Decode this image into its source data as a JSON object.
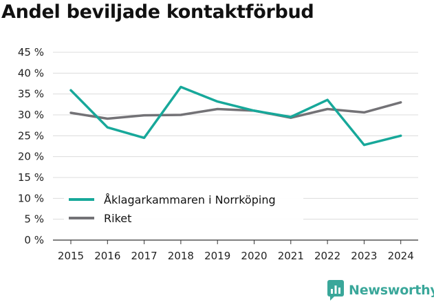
{
  "chart_data": {
    "type": "line",
    "title": "Andel beviljade kontaktförbud",
    "categories": [
      "2015",
      "2016",
      "2017",
      "2018",
      "2019",
      "2020",
      "2021",
      "2022",
      "2023",
      "2024"
    ],
    "ylim": [
      0,
      45
    ],
    "yticks": [
      0,
      5,
      10,
      15,
      20,
      25,
      30,
      35,
      40,
      45
    ],
    "ytick_suffix": " %",
    "grid": true,
    "legend_position": "bottom-left",
    "series": [
      {
        "name": "Åklagarkammaren i Norrköping",
        "color": "#17a89a",
        "values": [
          35.9,
          27.0,
          24.5,
          36.7,
          33.2,
          31.0,
          29.5,
          33.6,
          22.8,
          25.0
        ]
      },
      {
        "name": "Riket",
        "color": "#737276",
        "values": [
          30.5,
          29.1,
          29.9,
          30.0,
          31.4,
          31.0,
          29.3,
          31.4,
          30.6,
          33.0
        ]
      }
    ]
  },
  "brand": {
    "name": "Newsworthy",
    "color": "#3aa79a"
  }
}
